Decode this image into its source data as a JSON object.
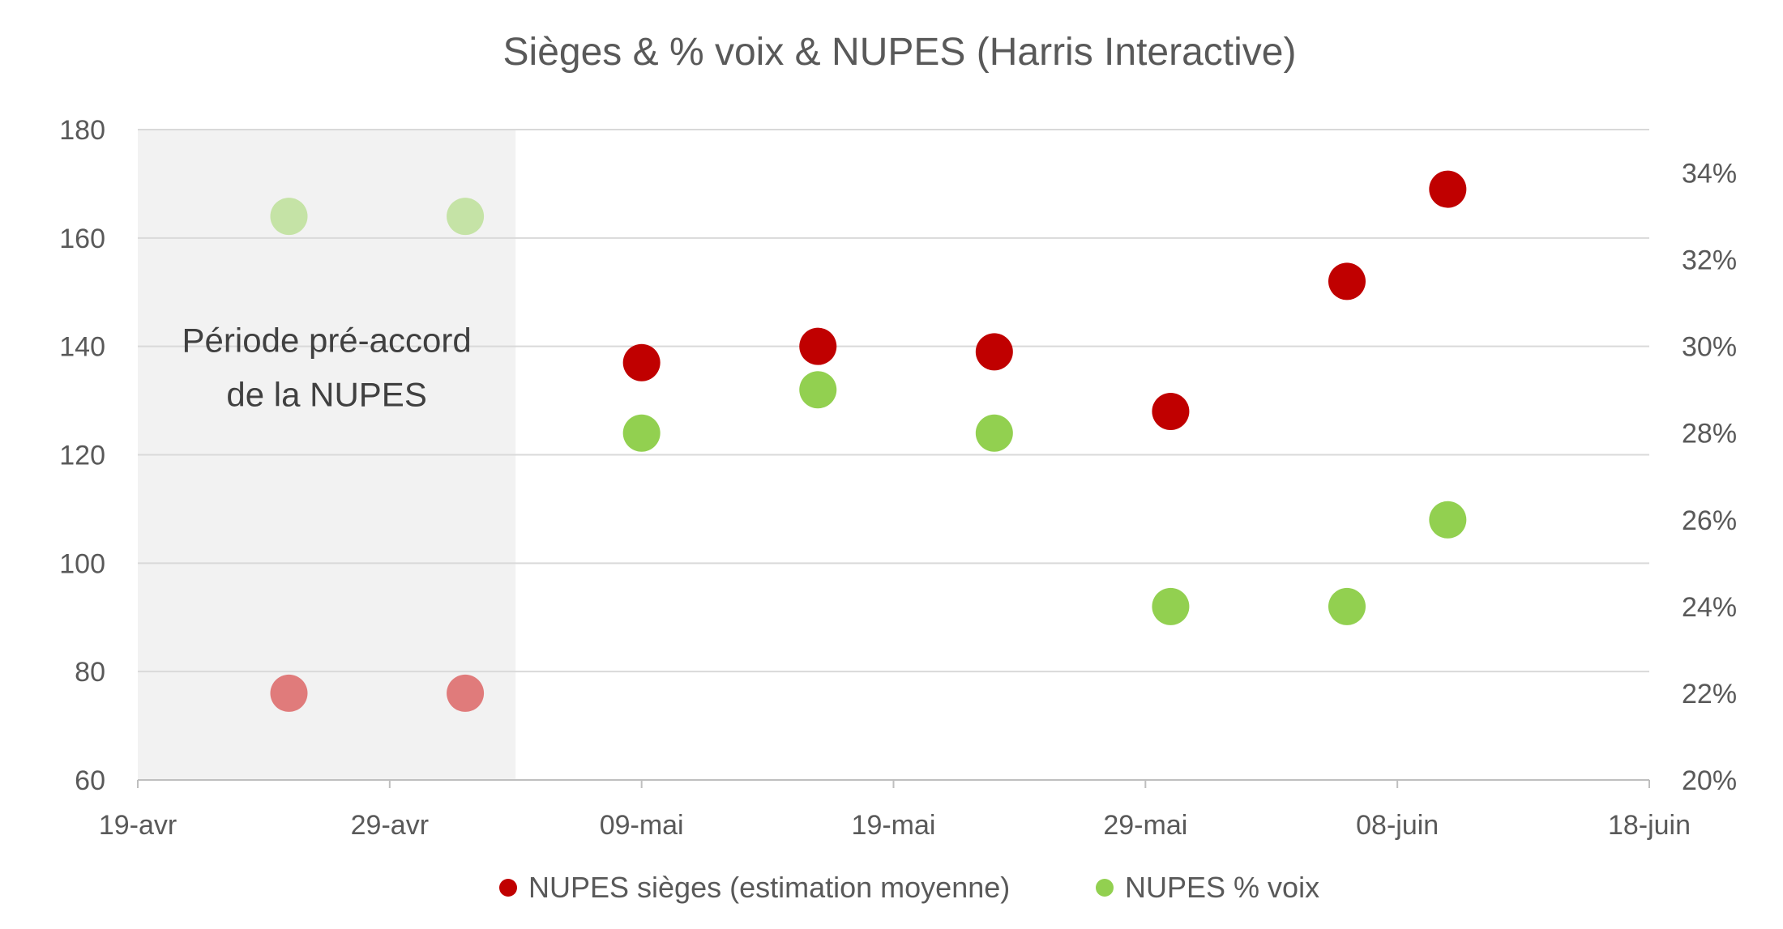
{
  "chart_data": {
    "type": "scatter",
    "title": "Sièges & % voix & NUPES (Harris Interactive)",
    "annotation": {
      "label_line1": "Période pré-accord",
      "label_line2": "de la NUPES",
      "x_start": "2022-04-19",
      "x_end": "2022-05-04"
    },
    "x_axis": {
      "type": "date",
      "range": [
        "2022-04-19",
        "2022-06-18"
      ],
      "ticks": [
        {
          "date": "2022-04-19",
          "label": "19-avr"
        },
        {
          "date": "2022-04-29",
          "label": "29-avr"
        },
        {
          "date": "2022-05-09",
          "label": "09-mai"
        },
        {
          "date": "2022-05-19",
          "label": "19-mai"
        },
        {
          "date": "2022-05-29",
          "label": "29-mai"
        },
        {
          "date": "2022-06-08",
          "label": "08-juin"
        },
        {
          "date": "2022-06-18",
          "label": "18-juin"
        }
      ]
    },
    "y_left": {
      "range": [
        60,
        180
      ],
      "ticks": [
        "60",
        "80",
        "100",
        "120",
        "140",
        "160",
        "180"
      ]
    },
    "y_right": {
      "range": [
        0.2,
        0.35
      ],
      "ticks": [
        {
          "value": 0.2,
          "label": "20%"
        },
        {
          "value": 0.22,
          "label": "22%"
        },
        {
          "value": 0.24,
          "label": "24%"
        },
        {
          "value": 0.26,
          "label": "26%"
        },
        {
          "value": 0.28,
          "label": "28%"
        },
        {
          "value": 0.3,
          "label": "30%"
        },
        {
          "value": 0.32,
          "label": "32%"
        },
        {
          "value": 0.34,
          "label": "34%"
        }
      ]
    },
    "grid": true,
    "legend_position": "bottom",
    "series": [
      {
        "name": "NUPES sièges (estimation moyenne)",
        "axis": "left",
        "color": "#C00000",
        "faded_color": "#E07B7B",
        "points": [
          {
            "x": "2022-04-25",
            "y": 76,
            "faded": true
          },
          {
            "x": "2022-05-02",
            "y": 76,
            "faded": true
          },
          {
            "x": "2022-05-09",
            "y": 137
          },
          {
            "x": "2022-05-16",
            "y": 140
          },
          {
            "x": "2022-05-23",
            "y": 139
          },
          {
            "x": "2022-05-30",
            "y": 128
          },
          {
            "x": "2022-06-06",
            "y": 152
          },
          {
            "x": "2022-06-10",
            "y": 169
          }
        ]
      },
      {
        "name": "NUPES % voix",
        "axis": "right",
        "color": "#92D050",
        "faded_color": "#C5E3A6",
        "points": [
          {
            "x": "2022-04-25",
            "y": 0.33,
            "faded": true
          },
          {
            "x": "2022-05-02",
            "y": 0.33,
            "faded": true
          },
          {
            "x": "2022-05-09",
            "y": 0.28
          },
          {
            "x": "2022-05-16",
            "y": 0.29
          },
          {
            "x": "2022-05-23",
            "y": 0.28
          },
          {
            "x": "2022-05-30",
            "y": 0.24
          },
          {
            "x": "2022-06-06",
            "y": 0.24
          },
          {
            "x": "2022-06-10",
            "y": 0.26
          }
        ]
      }
    ]
  }
}
